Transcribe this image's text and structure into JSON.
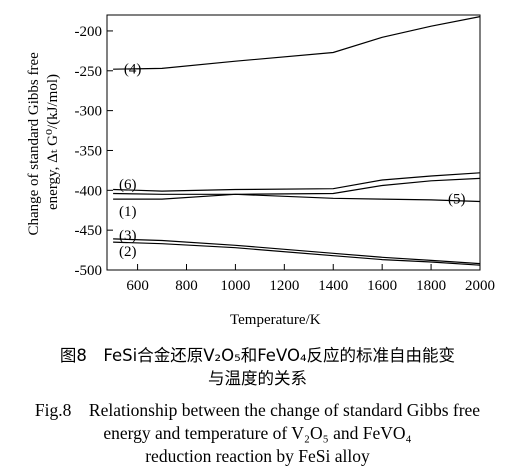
{
  "chart_data": {
    "type": "line",
    "xlabel": "Temperature/K",
    "ylabel_line1": "Change of standard Gibbs free",
    "ylabel_line2": "energy, Δₜ G⁰/(kJ/mol)",
    "xlim": [
      475,
      2000
    ],
    "ylim": [
      -500,
      -180
    ],
    "x_ticks": [
      600,
      800,
      1000,
      1200,
      1400,
      1600,
      1800,
      2000
    ],
    "y_ticks": [
      -500,
      -450,
      -400,
      -350,
      -300,
      -250,
      -200
    ],
    "grid": false,
    "legend": "none",
    "series": [
      {
        "name": "(4)",
        "x": [
          500,
          700,
          1000,
          1400,
          1600,
          1800,
          2000
        ],
        "y": [
          -248,
          -247,
          -238,
          -227,
          -208,
          -194,
          -182
        ]
      },
      {
        "name": "(6)",
        "x": [
          500,
          700,
          1000,
          1400,
          1600,
          1800,
          2000
        ],
        "y": [
          -399,
          -401,
          -399,
          -398,
          -387,
          -382,
          -378
        ]
      },
      {
        "name": "(5)",
        "x": [
          500,
          700,
          1000,
          1400,
          1600,
          1800,
          2000
        ],
        "y": [
          -404,
          -405,
          -405,
          -404,
          -394,
          -388,
          -385
        ]
      },
      {
        "name": "(1)",
        "x": [
          500,
          700,
          1000,
          1400,
          1600,
          1800,
          2000
        ],
        "y": [
          -411,
          -411,
          -405,
          -410,
          -411,
          -412,
          -414
        ]
      },
      {
        "name": "(3)",
        "x": [
          500,
          700,
          1000,
          1400,
          1600,
          1800,
          2000
        ],
        "y": [
          -461,
          -463,
          -469,
          -479,
          -484,
          -488,
          -492
        ]
      },
      {
        "name": "(2)",
        "x": [
          500,
          700,
          1000,
          1400,
          1600,
          1800,
          2000
        ],
        "y": [
          -465,
          -467,
          -472,
          -482,
          -487,
          -490,
          -494
        ]
      }
    ]
  },
  "caption": {
    "cn_line1": "图8　FeSi合金还原V₂O₅和FeVO₄反应的标准自由能变",
    "cn_line2": "与温度的关系",
    "en_line1": "Fig.8　Relationship between the change of standard Gibbs free",
    "en_line2": "energy and temperature of V₂O₅ and FeVO₄",
    "en_line3": "reduction reaction by FeSi alloy"
  }
}
